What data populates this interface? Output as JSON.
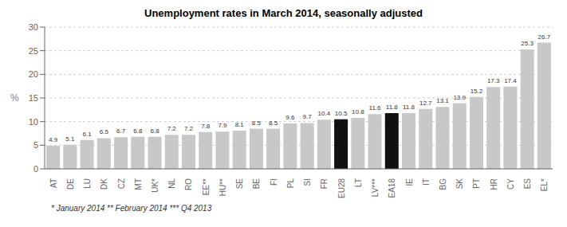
{
  "chart_data": {
    "type": "bar",
    "title": "Unemployment rates in March 2014, seasonally adjusted",
    "ylabel": "%",
    "categories": [
      "AT",
      "DE",
      "LU",
      "DK",
      "CZ",
      "MT",
      "UK*",
      "NL",
      "RO",
      "EE**",
      "HU**",
      "SE",
      "BE",
      "FI",
      "PL",
      "SI",
      "FR",
      "EU28",
      "LT",
      "LV***",
      "EA18",
      "IE",
      "IT",
      "BG",
      "SK",
      "PT",
      "HR",
      "CY",
      "ES",
      "EL*"
    ],
    "values": [
      4.9,
      5.1,
      6.1,
      6.5,
      6.7,
      6.8,
      6.8,
      7.2,
      7.2,
      7.8,
      7.9,
      8.1,
      8.5,
      8.5,
      9.6,
      9.7,
      10.4,
      10.5,
      10.8,
      11.6,
      11.8,
      11.8,
      12.7,
      13.1,
      13.9,
      15.2,
      17.3,
      17.4,
      25.3,
      26.7
    ],
    "colors": [
      "#c8c8c8",
      "#c8c8c8",
      "#c8c8c8",
      "#c8c8c8",
      "#c8c8c8",
      "#c8c8c8",
      "#c8c8c8",
      "#c8c8c8",
      "#c8c8c8",
      "#c8c8c8",
      "#c8c8c8",
      "#c8c8c8",
      "#c8c8c8",
      "#c8c8c8",
      "#c8c8c8",
      "#c8c8c8",
      "#c8c8c8",
      "#111111",
      "#c8c8c8",
      "#c8c8c8",
      "#111111",
      "#c8c8c8",
      "#c8c8c8",
      "#c8c8c8",
      "#c8c8c8",
      "#c8c8c8",
      "#c8c8c8",
      "#c8c8c8",
      "#c8c8c8",
      "#c8c8c8"
    ],
    "ylim": [
      0,
      30
    ],
    "yticks": [
      0,
      5,
      10,
      15,
      20,
      25,
      30
    ],
    "grid": true,
    "data_labels": true,
    "annotations": [
      "* January 2014    ** February 2014    *** Q4 2013"
    ]
  }
}
